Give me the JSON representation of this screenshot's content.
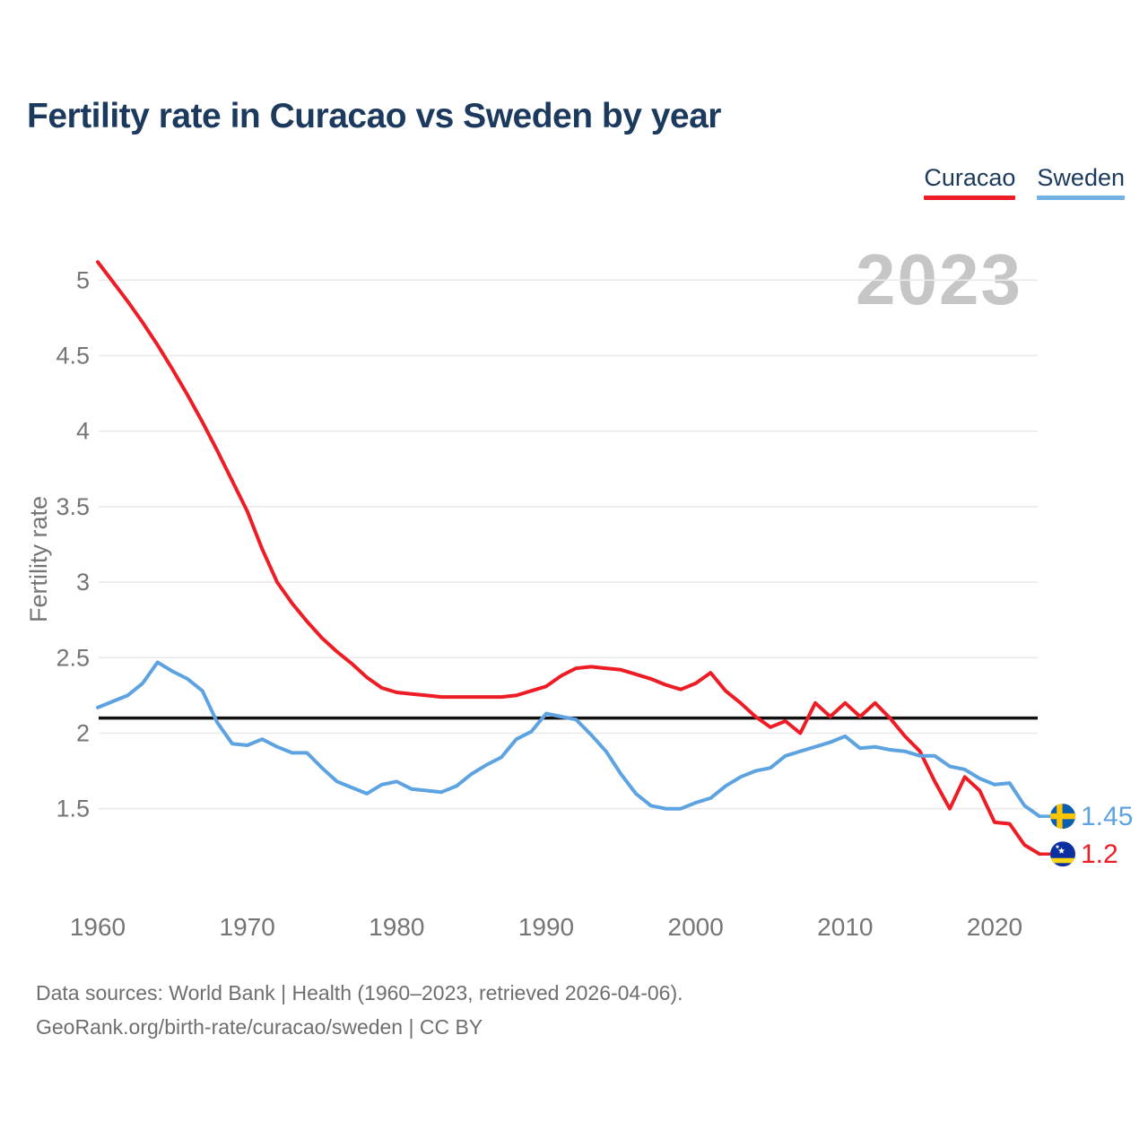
{
  "title": "Fertility rate in Curacao vs Sweden by year",
  "legend": {
    "items": [
      {
        "label": "Curacao",
        "color": "#ee1c25"
      },
      {
        "label": "Sweden",
        "color": "#74b2e5"
      }
    ]
  },
  "watermark": "2023",
  "footer": {
    "line1": "Data sources: World Bank | Health (1960–2023, retrieved 2026-04-06).",
    "line2": "GeoRank.org/birth-rate/curacao/sweden | CC BY"
  },
  "colors": {
    "curacao_line": "#ee1c25",
    "sweden_line": "#5da3e2",
    "reference_line": "#111111",
    "grid": "#eaeaea",
    "tick_text": "#757575",
    "title_text": "#1b3a5d",
    "watermark_text": "#c6c6c6",
    "footer_text": "#6e6e6e",
    "sweden_flag_blue": "#0d5eaf",
    "sweden_flag_yellow": "#fdc500",
    "curacao_flag_blue": "#0b2f9f",
    "curacao_flag_yellow": "#f9d616"
  },
  "chart_data": {
    "type": "line",
    "title": "Fertility rate in Curacao vs Sweden by year",
    "xlabel": "",
    "ylabel": "Fertility rate",
    "x": [
      1960,
      1961,
      1962,
      1963,
      1964,
      1965,
      1966,
      1967,
      1968,
      1969,
      1970,
      1971,
      1972,
      1973,
      1974,
      1975,
      1976,
      1977,
      1978,
      1979,
      1980,
      1981,
      1982,
      1983,
      1984,
      1985,
      1986,
      1987,
      1988,
      1989,
      1990,
      1991,
      1992,
      1993,
      1994,
      1995,
      1996,
      1997,
      1998,
      1999,
      2000,
      2001,
      2002,
      2003,
      2004,
      2005,
      2006,
      2007,
      2008,
      2009,
      2010,
      2011,
      2012,
      2013,
      2014,
      2015,
      2016,
      2017,
      2018,
      2019,
      2020,
      2021,
      2022,
      2023
    ],
    "series": [
      {
        "name": "Curacao",
        "end_label": "1.2",
        "values": [
          5.12,
          4.99,
          4.86,
          4.72,
          4.57,
          4.41,
          4.24,
          4.06,
          3.87,
          3.67,
          3.47,
          3.22,
          3.0,
          2.86,
          2.74,
          2.63,
          2.54,
          2.46,
          2.37,
          2.3,
          2.27,
          2.26,
          2.25,
          2.24,
          2.24,
          2.24,
          2.24,
          2.24,
          2.25,
          2.28,
          2.31,
          2.38,
          2.43,
          2.44,
          2.43,
          2.42,
          2.39,
          2.36,
          2.32,
          2.29,
          2.33,
          2.4,
          2.28,
          2.2,
          2.11,
          2.04,
          2.08,
          2.0,
          2.2,
          2.11,
          2.2,
          2.11,
          2.2,
          2.1,
          1.98,
          1.88,
          1.68,
          1.5,
          1.71,
          1.62,
          1.41,
          1.4,
          1.26,
          1.2
        ]
      },
      {
        "name": "Sweden",
        "end_label": "1.45",
        "values": [
          2.17,
          2.21,
          2.25,
          2.33,
          2.47,
          2.41,
          2.36,
          2.28,
          2.07,
          1.93,
          1.92,
          1.96,
          1.91,
          1.87,
          1.87,
          1.77,
          1.68,
          1.64,
          1.6,
          1.66,
          1.68,
          1.63,
          1.62,
          1.61,
          1.65,
          1.73,
          1.79,
          1.84,
          1.96,
          2.01,
          2.13,
          2.11,
          2.09,
          1.99,
          1.88,
          1.73,
          1.6,
          1.52,
          1.5,
          1.5,
          1.54,
          1.57,
          1.65,
          1.71,
          1.75,
          1.77,
          1.85,
          1.88,
          1.91,
          1.94,
          1.98,
          1.9,
          1.91,
          1.89,
          1.88,
          1.85,
          1.85,
          1.78,
          1.76,
          1.7,
          1.66,
          1.67,
          1.52,
          1.45
        ]
      }
    ],
    "xticks": [
      1960,
      1970,
      1980,
      1990,
      2000,
      2010,
      2020
    ],
    "yticks": [
      1.5,
      2,
      2.5,
      3,
      3.5,
      4,
      4.5,
      5
    ],
    "ylim": [
      1.1,
      5.15
    ],
    "reference_line": {
      "value": 2.1
    },
    "grid": true,
    "legend_position": "top-right"
  }
}
